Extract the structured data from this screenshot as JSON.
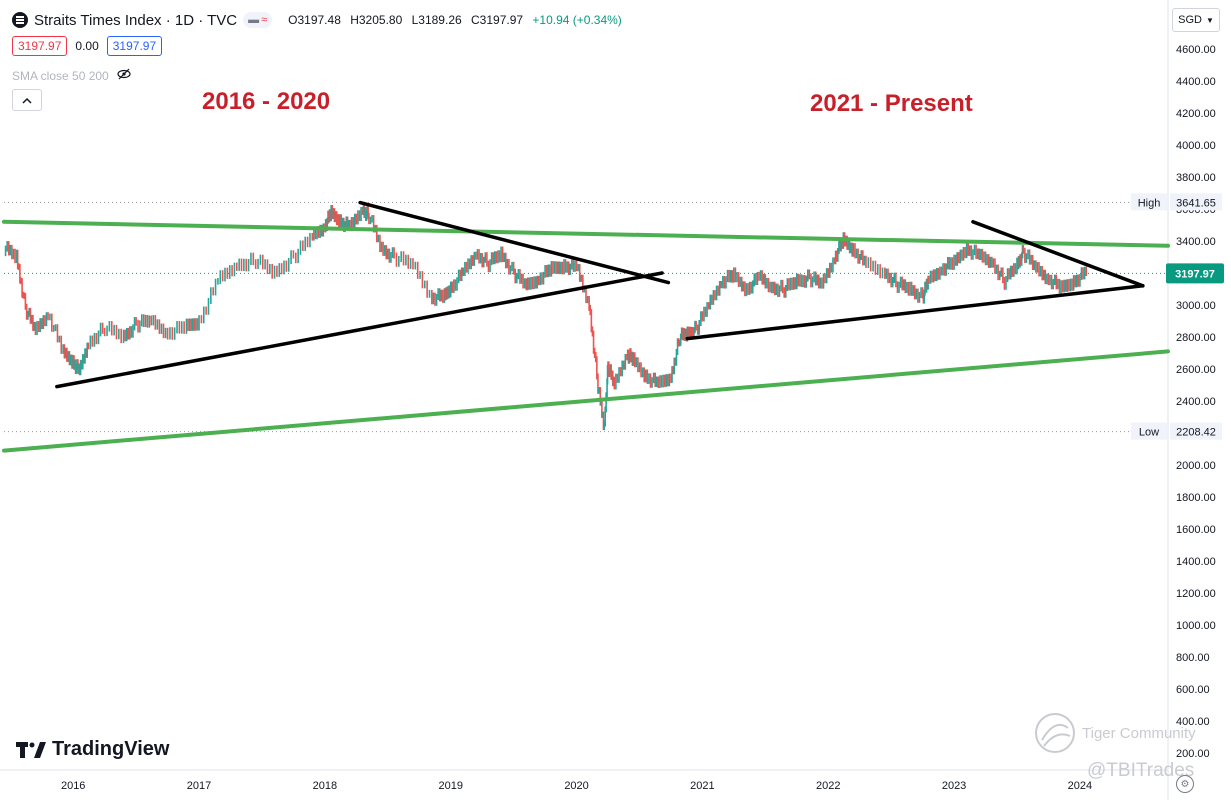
{
  "header": {
    "title": "Straits Times Index · 1D · TVC",
    "ohlc": {
      "open": "O3197.48",
      "high": "H3205.80",
      "low": "L3189.26",
      "close": "C3197.97",
      "change": "+10.94 (+0.34%)"
    },
    "indicator_pill": "≈"
  },
  "quote_row": {
    "bid": "3197.97",
    "spread": "0.00",
    "ask": "3197.97"
  },
  "sma_label": "SMA close 50 200",
  "currency": "SGD",
  "annotations": {
    "left": "2016 - 2020",
    "right": "2021 - Present"
  },
  "branding": {
    "logo_text": "TradingView"
  },
  "watermarks": {
    "community": "Tiger Community",
    "handle": "@TBITrades"
  },
  "chart_data": {
    "type": "line",
    "title": "Straits Times Index · 1D · TVC",
    "xlabel": "",
    "ylabel": "",
    "ylim": [
      0,
      4800
    ],
    "y_ticks": [
      200,
      400,
      600,
      800,
      1000,
      1200,
      1400,
      1600,
      1800,
      2000,
      2200,
      2400,
      2600,
      2800,
      3000,
      3200,
      3400,
      3600,
      3800,
      4000,
      4200,
      4400,
      4600
    ],
    "x_ticks": [
      {
        "label": "2016",
        "x": 2016.0
      },
      {
        "label": "2017",
        "x": 2017.0
      },
      {
        "label": "2018",
        "x": 2018.0
      },
      {
        "label": "2019",
        "x": 2019.0
      },
      {
        "label": "2020",
        "x": 2020.0
      },
      {
        "label": "2021",
        "x": 2021.0
      },
      {
        "label": "2022",
        "x": 2022.0
      },
      {
        "label": "2023",
        "x": 2023.0
      },
      {
        "label": "2024",
        "x": 2024.0
      }
    ],
    "xlim": [
      2015.45,
      2024.7
    ],
    "series": [
      {
        "x": [
          2015.45,
          2015.55,
          2015.62,
          2015.7,
          2015.8,
          2015.92,
          2016.0,
          2016.05,
          2016.12,
          2016.25,
          2016.4,
          2016.5,
          2016.62,
          2016.75,
          2016.9,
          2017.0,
          2017.15,
          2017.3,
          2017.45,
          2017.6,
          2017.75,
          2017.9,
          2018.0,
          2018.05,
          2018.12,
          2018.2,
          2018.3,
          2018.35,
          2018.45,
          2018.55,
          2018.7,
          2018.85,
          2018.95,
          2019.0,
          2019.1,
          2019.2,
          2019.3,
          2019.4,
          2019.5,
          2019.6,
          2019.7,
          2019.8,
          2019.9,
          2020.0,
          2020.1,
          2020.17,
          2020.22,
          2020.25,
          2020.3,
          2020.4,
          2020.45,
          2020.55,
          2020.65,
          2020.75,
          2020.82,
          2020.88,
          2020.95,
          2021.05,
          2021.15,
          2021.25,
          2021.35,
          2021.45,
          2021.55,
          2021.65,
          2021.75,
          2021.85,
          2021.95,
          2022.05,
          2022.12,
          2022.2,
          2022.3,
          2022.45,
          2022.55,
          2022.65,
          2022.75,
          2022.8,
          2022.9,
          2023.0,
          2023.1,
          2023.2,
          2023.3,
          2023.4,
          2023.5,
          2023.55,
          2023.65,
          2023.75,
          2023.85,
          2023.95,
          2024.05
        ],
        "y": [
          3360,
          3300,
          2980,
          2840,
          2950,
          2700,
          2650,
          2580,
          2760,
          2860,
          2800,
          2880,
          2900,
          2830,
          2860,
          2900,
          3150,
          3250,
          3280,
          3200,
          3300,
          3430,
          3500,
          3570,
          3530,
          3480,
          3600,
          3560,
          3350,
          3300,
          3250,
          3050,
          3050,
          3110,
          3200,
          3320,
          3260,
          3320,
          3200,
          3120,
          3170,
          3220,
          3250,
          3230,
          3000,
          2500,
          2230,
          2620,
          2500,
          2700,
          2650,
          2560,
          2500,
          2550,
          2800,
          2820,
          2850,
          3000,
          3150,
          3180,
          3100,
          3170,
          3110,
          3100,
          3150,
          3170,
          3130,
          3300,
          3400,
          3350,
          3250,
          3200,
          3130,
          3100,
          3050,
          3160,
          3230,
          3260,
          3360,
          3300,
          3270,
          3150,
          3250,
          3330,
          3230,
          3170,
          3100,
          3150,
          3200
        ]
      }
    ],
    "trendlines": [
      {
        "color": "#4caf50",
        "points": [
          [
            2015.45,
            3520
          ],
          [
            2024.7,
            3370
          ]
        ]
      },
      {
        "color": "#4caf50",
        "points": [
          [
            2015.45,
            2090
          ],
          [
            2024.7,
            2710
          ]
        ]
      },
      {
        "color": "#000000",
        "points": [
          [
            2015.87,
            2490
          ],
          [
            2020.68,
            3200
          ]
        ]
      },
      {
        "color": "#000000",
        "points": [
          [
            2018.28,
            3640
          ],
          [
            2020.73,
            3140
          ]
        ]
      },
      {
        "color": "#000000",
        "points": [
          [
            2020.88,
            2790
          ],
          [
            2024.5,
            3120
          ]
        ]
      },
      {
        "color": "#000000",
        "points": [
          [
            2023.15,
            3520
          ],
          [
            2024.5,
            3120
          ]
        ]
      }
    ],
    "markers": [
      {
        "label": "High",
        "value": "3641.65",
        "y": 3641.65,
        "color": "#4f5966"
      },
      {
        "label": "Low",
        "value": "2208.42",
        "y": 2208.42,
        "color": "#4f5966"
      },
      {
        "label": "",
        "value": "3197.97",
        "y": 3197.97,
        "color": "#089981"
      }
    ],
    "grid": false,
    "legend": "none"
  }
}
